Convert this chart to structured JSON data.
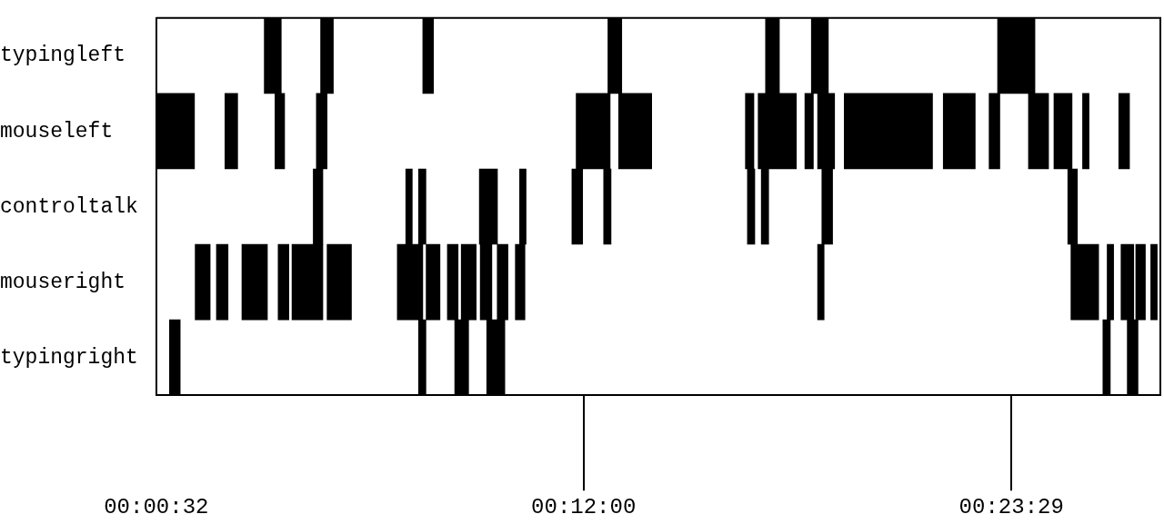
{
  "chart_data": {
    "type": "bar",
    "orientation": "horizontal",
    "categories": [
      "typingleft",
      "mouseleft",
      "controltalk",
      "mouseright",
      "typingright"
    ],
    "xlim": [
      0.00889,
      0.458
    ],
    "xticks": [
      {
        "value": 0.00889,
        "label": "00:00:32"
      },
      {
        "value": 0.2,
        "label": "00:12:00"
      },
      {
        "value": 0.39139,
        "label": "00:23:29"
      }
    ],
    "series": [
      {
        "color": "#000000",
        "base": [
          0.0572,
          0.00889,
          0.0791,
          0.0263,
          0.0148
        ],
        "values": [
          0.0076,
          0.0171,
          0.0043,
          0.0067,
          0.0048
        ]
      },
      {
        "color": "#000000",
        "base": [
          0.0824,
          0.0396,
          0.1205,
          0.0358,
          0.1262
        ],
        "values": [
          0.0057,
          0.0057,
          0.0029,
          0.0052,
          0.0033
        ]
      },
      {
        "color": "#000000",
        "base": [
          0.1281,
          0.062,
          0.1262,
          0.0472,
          0.1424
        ],
        "values": [
          0.0048,
          0.0043,
          0.0033,
          0.0114,
          0.0062
        ]
      },
      {
        "color": "#000000",
        "base": [
          0.2109,
          0.0805,
          0.1534,
          0.0634,
          0.1567
        ],
        "values": [
          0.0062,
          0.0048,
          0.0081,
          0.0048,
          0.0081
        ]
      },
      {
        "color": "#000000",
        "base": [
          0.2814,
          0.1967,
          0.1714,
          0.0696,
          0.4323
        ],
        "values": [
          0.0062,
          0.0152,
          0.0029,
          0.0138,
          0.0033
        ]
      },
      {
        "color": "#000000",
        "base": [
          0.3019,
          0.2157,
          0.1948,
          0.0853,
          0.4432
        ],
        "values": [
          0.0076,
          0.0148,
          0.0048,
          0.0109,
          0.0048
        ]
      },
      {
        "color": "#000000",
        "base": [
          0.3852,
          0.2724,
          0.209,
          0.1167,
          null
        ],
        "values": [
          0.0167,
          0.0038,
          0.0033,
          0.0114,
          null
        ]
      },
      {
        "color": "#000000",
        "base": [
          null,
          0.2781,
          0.2733,
          0.1296,
          null
        ],
        "values": [
          null,
          0.0171,
          0.0033,
          0.0062,
          null
        ]
      },
      {
        "color": "#000000",
        "base": [
          null,
          0.299,
          0.2795,
          0.1391,
          null
        ],
        "values": [
          null,
          0.0038,
          0.0033,
          0.0048,
          null
        ]
      },
      {
        "color": "#000000",
        "base": [
          null,
          0.3047,
          0.3066,
          0.1453,
          null
        ],
        "values": [
          null,
          0.0076,
          0.0048,
          0.0067,
          null
        ]
      },
      {
        "color": "#000000",
        "base": [
          null,
          0.3166,
          0.4166,
          0.1538,
          null
        ],
        "values": [
          null,
          0.0395,
          0.0043,
          0.0052,
          null
        ]
      },
      {
        "color": "#000000",
        "base": [
          null,
          0.3609,
          null,
          0.1614,
          null
        ],
        "values": [
          null,
          0.0143,
          null,
          0.0048,
          null
        ]
      },
      {
        "color": "#000000",
        "base": [
          null,
          0.3814,
          null,
          0.1695,
          null
        ],
        "values": [
          null,
          0.0048,
          null,
          0.0043,
          null
        ]
      },
      {
        "color": "#000000",
        "base": [
          null,
          0.399,
          null,
          0.3047,
          null
        ],
        "values": [
          null,
          0.009,
          null,
          0.0029,
          null
        ]
      },
      {
        "color": "#000000",
        "base": [
          null,
          0.4104,
          null,
          0.418,
          null
        ],
        "values": [
          null,
          0.0081,
          null,
          0.0124,
          null
        ]
      },
      {
        "color": "#000000",
        "base": [
          null,
          0.4232,
          null,
          0.4342,
          null
        ],
        "values": [
          null,
          0.0029,
          null,
          0.0029,
          null
        ]
      },
      {
        "color": "#000000",
        "base": [
          null,
          0.4394,
          null,
          0.4404,
          null
        ],
        "values": [
          null,
          0.0048,
          null,
          0.0057,
          null
        ]
      },
      {
        "color": "#000000",
        "base": [
          null,
          null,
          null,
          0.447,
          null
        ],
        "values": [
          null,
          null,
          null,
          0.0043,
          null
        ]
      },
      {
        "color": "#000000",
        "base": [
          null,
          null,
          null,
          0.4537,
          null
        ],
        "values": [
          null,
          null,
          null,
          0.0029,
          null
        ]
      }
    ]
  }
}
